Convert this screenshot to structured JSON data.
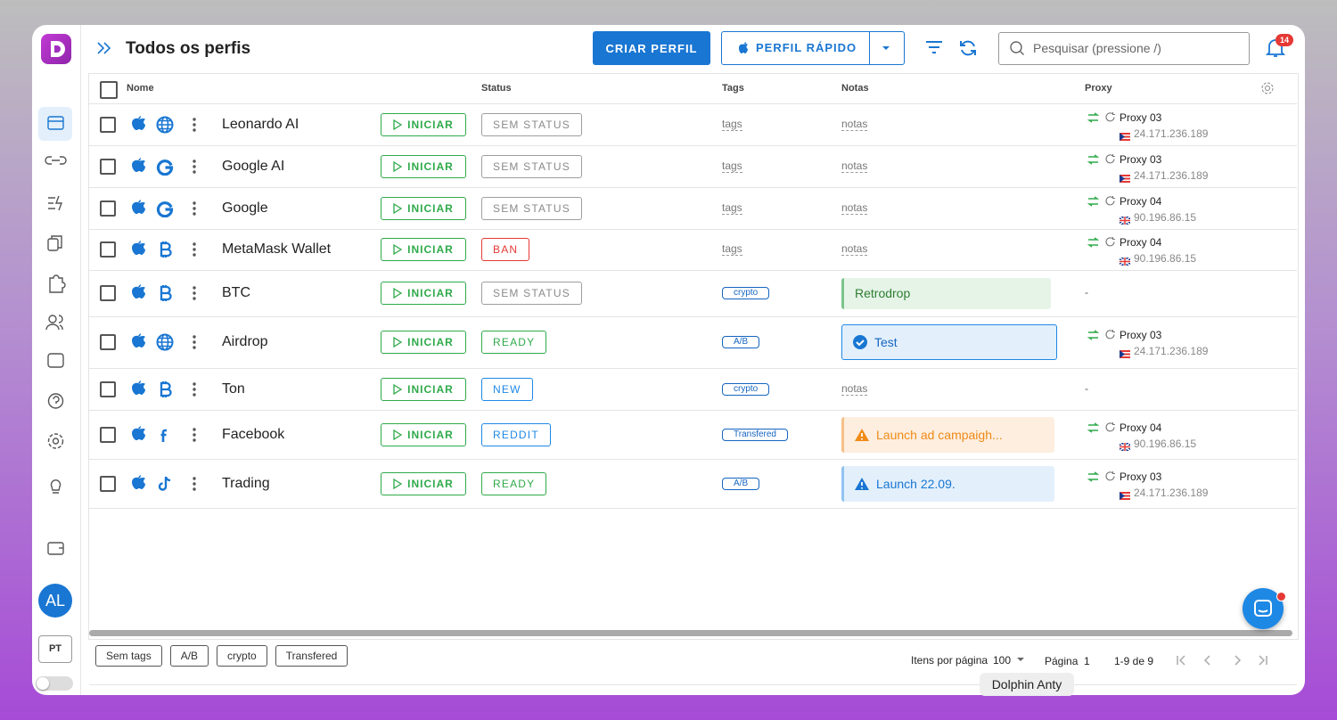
{
  "header": {
    "title": "Todos os perfis",
    "create_button": "CRIAR PERFIL",
    "quick_button": "PERFIL RÁPIDO",
    "search_placeholder": "Pesquisar (pressione /)",
    "notifications": "14"
  },
  "sidebar": {
    "avatar": "AL",
    "language": "PT"
  },
  "table": {
    "columns": [
      "Nome",
      "Status",
      "Tags",
      "Notas",
      "Proxy"
    ],
    "start_label": "INICIAR",
    "rows": [
      {
        "name": "Leonardo AI",
        "icon": "globe",
        "status": "SEM STATUS",
        "status_color": "grey",
        "tags": "tags",
        "tag_chip": false,
        "note": "notas",
        "note_kind": "placeholder",
        "proxy": {
          "name": "Proxy 03",
          "ip": "24.171.236.189",
          "flag": "pr"
        }
      },
      {
        "name": "Google AI",
        "icon": "google",
        "status": "SEM STATUS",
        "status_color": "grey",
        "tags": "tags",
        "tag_chip": false,
        "note": "notas",
        "note_kind": "placeholder",
        "proxy": {
          "name": "Proxy 03",
          "ip": "24.171.236.189",
          "flag": "pr"
        }
      },
      {
        "name": "Google",
        "icon": "google",
        "status": "SEM STATUS",
        "status_color": "grey",
        "tags": "tags",
        "tag_chip": false,
        "note": "notas",
        "note_kind": "placeholder",
        "proxy": {
          "name": "Proxy 04",
          "ip": "90.196.86.15",
          "flag": "gb"
        }
      },
      {
        "name": "MetaMask Wallet",
        "icon": "bitcoin",
        "status": "BAN",
        "status_color": "red",
        "tags": "tags",
        "tag_chip": false,
        "note": "notas",
        "note_kind": "placeholder",
        "proxy": {
          "name": "Proxy 04",
          "ip": "90.196.86.15",
          "flag": "gb"
        }
      },
      {
        "name": "BTC",
        "icon": "bitcoin",
        "status": "SEM STATUS",
        "status_color": "grey",
        "tags": "crypto",
        "tag_chip": true,
        "note": "Retrodrop",
        "note_kind": "success",
        "proxy": "-"
      },
      {
        "name": "Airdrop",
        "icon": "globe",
        "status": "READY",
        "status_color": "green",
        "tags": "A/B",
        "tag_chip": true,
        "note": "Test",
        "note_kind": "check",
        "proxy": {
          "name": "Proxy 03",
          "ip": "24.171.236.189",
          "flag": "pr"
        }
      },
      {
        "name": "Ton",
        "icon": "bitcoin",
        "status": "NEW",
        "status_color": "blue",
        "tags": "crypto",
        "tag_chip": true,
        "note": "notas",
        "note_kind": "placeholder",
        "proxy": "-"
      },
      {
        "name": "Facebook",
        "icon": "facebook",
        "status": "REDDIT",
        "status_color": "blue",
        "tags": "Transfered",
        "tag_chip": true,
        "note": "Launch ad campaigh...",
        "note_kind": "warning",
        "proxy": {
          "name": "Proxy 04",
          "ip": "90.196.86.15",
          "flag": "gb"
        }
      },
      {
        "name": "Trading",
        "icon": "tiktok",
        "status": "READY",
        "status_color": "green",
        "tags": "A/B",
        "tag_chip": true,
        "note": "Launch 22.09.",
        "note_kind": "info",
        "proxy": {
          "name": "Proxy 03",
          "ip": "24.171.236.189",
          "flag": "pr"
        }
      }
    ]
  },
  "footer": {
    "tag_filters": [
      "Sem tags",
      "A/B",
      "crypto",
      "Transfered"
    ],
    "per_page_label": "Itens por página",
    "per_page": "100",
    "page_label": "Página",
    "page": "1",
    "range": "1-9 de 9"
  },
  "tooltip": "Dolphin Anty"
}
